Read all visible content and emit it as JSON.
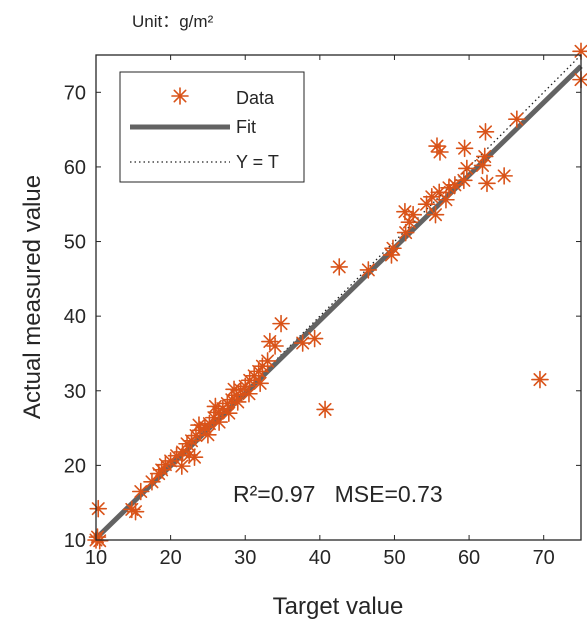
{
  "chart_data": {
    "type": "scatter",
    "unit_label": "Unit：g/m²",
    "xlabel": "Target value",
    "ylabel": "Actual measured value",
    "xlim": [
      10,
      75
    ],
    "ylim": [
      10,
      75
    ],
    "xticks": [
      10,
      20,
      30,
      40,
      50,
      60,
      70
    ],
    "yticks": [
      10,
      20,
      30,
      40,
      50,
      60,
      70
    ],
    "grid": false,
    "legend_position": "top-left",
    "colors": {
      "data": "#d95319",
      "fit": "#636363",
      "identity": "#222222"
    },
    "legend": [
      {
        "label": "Data",
        "style": "marker"
      },
      {
        "label": "Fit",
        "style": "solid"
      },
      {
        "label": "Y = T",
        "style": "dotted"
      }
    ],
    "annotation": "R²=0.97   MSE=0.73",
    "fit_line": {
      "x": [
        10,
        75
      ],
      "y": [
        10.2,
        73.5
      ]
    },
    "identity_line": {
      "x": [
        10,
        75
      ],
      "y": [
        10,
        75
      ]
    },
    "series": [
      {
        "name": "Data",
        "points": [
          [
            10,
            10
          ],
          [
            10.2,
            10.4
          ],
          [
            10.5,
            9.9
          ],
          [
            10.3,
            14.2
          ],
          [
            14.8,
            14.1
          ],
          [
            15.3,
            13.8
          ],
          [
            16.0,
            16.5
          ],
          [
            17.5,
            17.8
          ],
          [
            18.4,
            18.9
          ],
          [
            18.8,
            19.4
          ],
          [
            19.3,
            20.1
          ],
          [
            20.0,
            20.6
          ],
          [
            20.8,
            21.3
          ],
          [
            21.6,
            21.8
          ],
          [
            22.2,
            22.9
          ],
          [
            22.8,
            23.3
          ],
          [
            23.4,
            24.0
          ],
          [
            24.0,
            24.7
          ],
          [
            24.6,
            25.1
          ],
          [
            25.2,
            25.6
          ],
          [
            25.8,
            26.4
          ],
          [
            26.4,
            27.1
          ],
          [
            27.0,
            27.6
          ],
          [
            27.6,
            28.3
          ],
          [
            28.2,
            28.8
          ],
          [
            28.8,
            29.4
          ],
          [
            29.4,
            30.1
          ],
          [
            30.0,
            30.6
          ],
          [
            30.6,
            31.4
          ],
          [
            31.2,
            32.0
          ],
          [
            31.8,
            32.6
          ],
          [
            32.3,
            33.3
          ],
          [
            21.5,
            19.9
          ],
          [
            22.5,
            21.4
          ],
          [
            23.2,
            21.1
          ],
          [
            25.0,
            24.1
          ],
          [
            26.5,
            25.8
          ],
          [
            27.8,
            27.0
          ],
          [
            29.0,
            28.5
          ],
          [
            23.8,
            25.4
          ],
          [
            26.0,
            27.9
          ],
          [
            28.5,
            30.2
          ],
          [
            30.5,
            29.6
          ],
          [
            32.0,
            31.0
          ],
          [
            33.0,
            34.0
          ],
          [
            33.3,
            36.6
          ],
          [
            34.0,
            36.0
          ],
          [
            34.8,
            39.0
          ],
          [
            37.7,
            36.4
          ],
          [
            39.3,
            37.0
          ],
          [
            40.7,
            27.5
          ],
          [
            42.6,
            46.6
          ],
          [
            46.5,
            46.2
          ],
          [
            49.6,
            48.2
          ],
          [
            49.8,
            49.1
          ],
          [
            51.5,
            51.2
          ],
          [
            52.0,
            52.6
          ],
          [
            52.5,
            53.6
          ],
          [
            51.4,
            54.0
          ],
          [
            54.3,
            55.0
          ],
          [
            55.0,
            56.0
          ],
          [
            55.5,
            53.6
          ],
          [
            56.0,
            56.6
          ],
          [
            55.7,
            62.8
          ],
          [
            56.1,
            62.0
          ],
          [
            56.9,
            55.6
          ],
          [
            57.3,
            57.2
          ],
          [
            58.1,
            57.6
          ],
          [
            59.3,
            58.2
          ],
          [
            59.7,
            59.8
          ],
          [
            59.4,
            62.5
          ],
          [
            61.8,
            60.2
          ],
          [
            62.1,
            61.4
          ],
          [
            62.2,
            64.7
          ],
          [
            62.4,
            57.8
          ],
          [
            64.7,
            58.8
          ],
          [
            66.4,
            66.4
          ],
          [
            69.5,
            31.5
          ],
          [
            75.0,
            75.5
          ],
          [
            75.0,
            71.7
          ]
        ]
      }
    ]
  }
}
